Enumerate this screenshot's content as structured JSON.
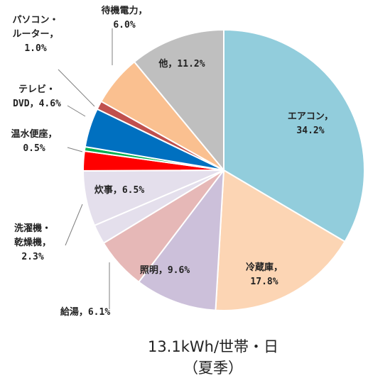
{
  "chart_data": {
    "type": "pie",
    "title": "13.1kWh/世帯・日",
    "subtitle": "（夏季）",
    "slices": [
      {
        "label_lines": [
          "エアコン，",
          "34.2%"
        ],
        "value": 34.2,
        "color": "#92CDDC"
      },
      {
        "label_lines": [
          "冷蔵庫，",
          "17.8%"
        ],
        "value": 17.8,
        "color": "#FCD5B4"
      },
      {
        "label_lines": [
          "照明，9.6%"
        ],
        "value": 9.6,
        "color": "#CCC0DA"
      },
      {
        "label_lines": [
          "給湯，6.1%"
        ],
        "value": 6.1,
        "color": "#E6B8B7"
      },
      {
        "label_lines": [
          "洗濯機・",
          "乾燥機，",
          "2.3%"
        ],
        "value": 2.3,
        "color": "#E4DFEC"
      },
      {
        "label_lines": [
          "炊事，6.5%"
        ],
        "value": 6.5,
        "color": "#E4DFEC"
      },
      {
        "label_lines": [],
        "value": 2.3,
        "color": "#FF0000"
      },
      {
        "label_lines": [
          "温水便座，",
          "0.5%"
        ],
        "value": 0.5,
        "color": "#00B050"
      },
      {
        "label_lines": [
          "テレビ・",
          "DVD，4.6%"
        ],
        "value": 4.6,
        "color": "#0070C0"
      },
      {
        "label_lines": [
          "パソコン・",
          "ルーター，",
          "1.0%"
        ],
        "value": 1.0,
        "color": "#C0504D"
      },
      {
        "label_lines": [
          "待機電力，",
          "6.0%"
        ],
        "value": 6.0,
        "color": "#FAC090"
      },
      {
        "label_lines": [
          "他，11.2%"
        ],
        "value": 11.2,
        "color": "#BFBFBF"
      }
    ]
  }
}
